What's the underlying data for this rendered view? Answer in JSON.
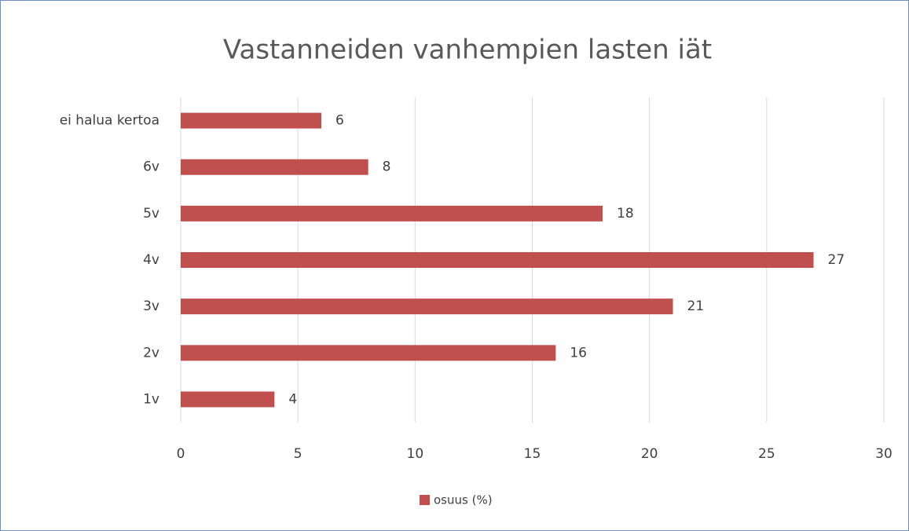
{
  "chart_data": {
    "type": "hbar",
    "title": "Vastanneiden vanhempien lasten iät",
    "categories": [
      "ei halua kertoa",
      "6v",
      "5v",
      "4v",
      "3v",
      "2v",
      "1v"
    ],
    "series": [
      {
        "name": "osuus (%)",
        "color": "#c0504d",
        "values": [
          6,
          8,
          18,
          27,
          21,
          16,
          4
        ]
      }
    ],
    "xlim": [
      0,
      30
    ],
    "xticks": [
      0,
      5,
      10,
      15,
      20,
      25,
      30
    ],
    "grid": true,
    "legend": "bottom",
    "data_labels": true
  }
}
